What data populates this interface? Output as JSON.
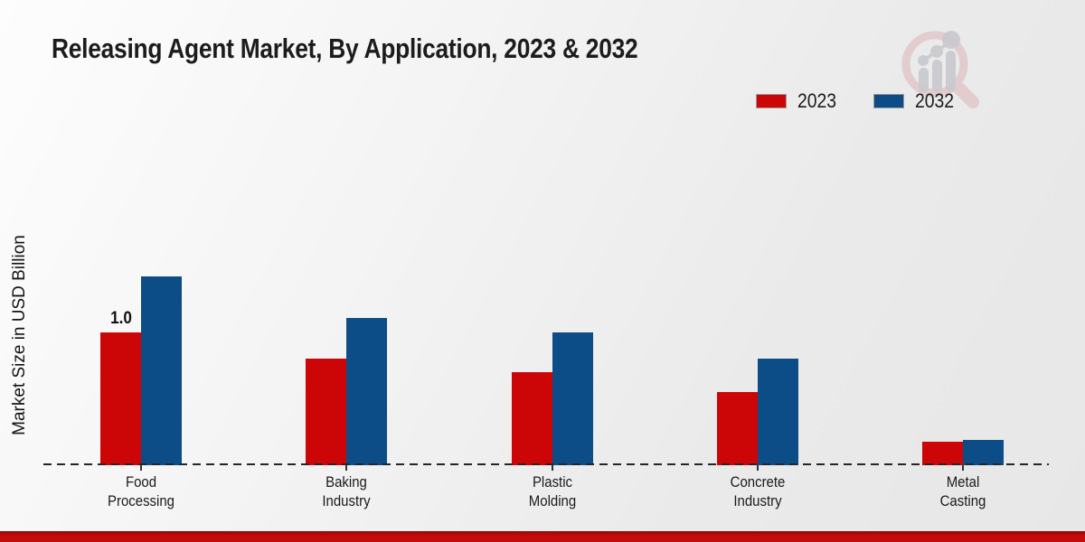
{
  "chart_data": {
    "type": "bar",
    "title": "Releasing Agent Market, By Application, 2023 & 2032",
    "xlabel": "",
    "ylabel": "Market Size in USD Billion",
    "unit": "USD Billion",
    "categories": [
      "Food Processing",
      "Baking Industry",
      "Plastic Molding",
      "Concrete Industry",
      "Metal Casting"
    ],
    "series": [
      {
        "name": "2023",
        "color": "#cc0606",
        "values": [
          1.0,
          0.8,
          0.7,
          0.55,
          0.18
        ]
      },
      {
        "name": "2032",
        "color": "#0d4d87",
        "values": [
          1.42,
          1.11,
          1.0,
          0.8,
          0.19
        ]
      }
    ],
    "annotations": [
      {
        "series_index": 0,
        "category_index": 0,
        "text": "1.0"
      }
    ],
    "ylim": [
      0,
      1.6
    ],
    "grid": false,
    "legend_position": "top-right",
    "baseline_style": "dashed",
    "axis_ticks_visible": false
  },
  "colors": {
    "series_2023": "#cc0606",
    "series_2032": "#0d4d87",
    "bottom_accent": "#c50b0b",
    "baseline": "#262626",
    "text": "#1a1a1a"
  },
  "watermark": {
    "description": "magnifier-with-bar-chart logo"
  }
}
